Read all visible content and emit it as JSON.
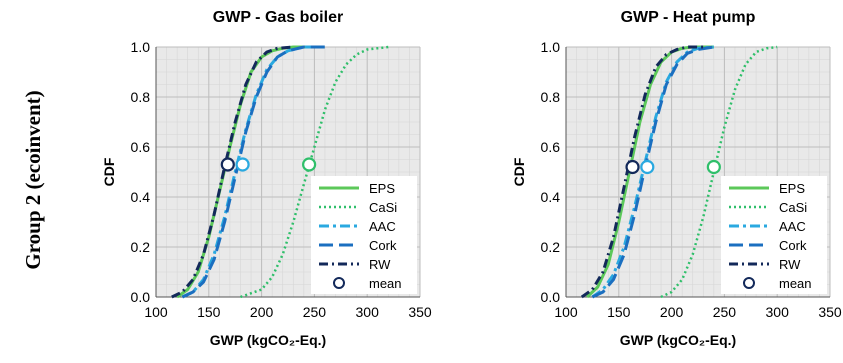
{
  "row_label": "Group 2 (ecoinvent)",
  "colors": {
    "eps": "#5cc85a",
    "casi": "#2fbf6a",
    "aac": "#2aa9e0",
    "cork": "#1b6fc0",
    "rw": "#13295a",
    "grid": "#c8c8c8",
    "plot_bg": "#e9e9e9"
  },
  "chart_data": [
    {
      "type": "line",
      "title": "GWP - Gas boiler",
      "xlabel": "GWP (kgCO₂-Eq.)",
      "ylabel": "CDF",
      "xlim": [
        100,
        350
      ],
      "ylim": [
        0,
        1
      ],
      "xticks": [
        100,
        150,
        200,
        250,
        300,
        350
      ],
      "yticks": [
        0.0,
        0.2,
        0.4,
        0.6,
        0.8,
        1.0
      ],
      "grid": true,
      "legend_position": "bottom-right",
      "series": [
        {
          "name": "EPS",
          "key": "eps",
          "dash": "solid",
          "x": [
            120,
            130,
            140,
            150,
            160,
            170,
            180,
            190,
            200,
            210,
            220,
            230,
            250
          ],
          "y": [
            0.0,
            0.03,
            0.1,
            0.24,
            0.42,
            0.6,
            0.77,
            0.9,
            0.96,
            0.985,
            0.995,
            1.0,
            1.0
          ]
        },
        {
          "name": "CaSi",
          "key": "casi",
          "dash": "dotted",
          "x": [
            180,
            200,
            210,
            220,
            230,
            240,
            250,
            260,
            270,
            280,
            290,
            300,
            320
          ],
          "y": [
            0.0,
            0.03,
            0.08,
            0.17,
            0.3,
            0.45,
            0.6,
            0.75,
            0.86,
            0.93,
            0.97,
            0.99,
            1.0
          ]
        },
        {
          "name": "AAC",
          "key": "aac",
          "dash": "dashdot",
          "x": [
            125,
            135,
            145,
            155,
            165,
            175,
            185,
            195,
            205,
            215,
            225,
            240,
            260
          ],
          "y": [
            0.0,
            0.02,
            0.07,
            0.17,
            0.32,
            0.5,
            0.67,
            0.81,
            0.91,
            0.96,
            0.985,
            1.0,
            1.0
          ]
        },
        {
          "name": "Cork",
          "key": "cork",
          "dash": "longdash",
          "x": [
            125,
            135,
            145,
            155,
            165,
            175,
            185,
            195,
            205,
            215,
            225,
            240,
            260
          ],
          "y": [
            0.0,
            0.02,
            0.06,
            0.15,
            0.3,
            0.48,
            0.66,
            0.8,
            0.9,
            0.96,
            0.985,
            1.0,
            1.0
          ]
        },
        {
          "name": "RW",
          "key": "rw",
          "dash": "dashdot2",
          "x": [
            115,
            125,
            135,
            145,
            155,
            165,
            175,
            185,
            195,
            205,
            215,
            230
          ],
          "y": [
            0.0,
            0.02,
            0.07,
            0.17,
            0.33,
            0.52,
            0.7,
            0.85,
            0.94,
            0.98,
            0.995,
            1.0
          ]
        }
      ],
      "means": [
        {
          "name": "RW",
          "key": "rw",
          "x": 168,
          "y": 0.53
        },
        {
          "name": "AAC",
          "key": "aac",
          "x": 182,
          "y": 0.53
        },
        {
          "name": "CaSi",
          "key": "casi",
          "x": 245,
          "y": 0.53
        }
      ],
      "legend": [
        "EPS",
        "CaSi",
        "AAC",
        "Cork",
        "RW",
        "mean"
      ]
    },
    {
      "type": "line",
      "title": "GWP - Heat pump",
      "xlabel": "GWP (kgCO₂-Eq.)",
      "ylabel": "CDF",
      "xlim": [
        100,
        350
      ],
      "ylim": [
        0,
        1
      ],
      "xticks": [
        100,
        150,
        200,
        250,
        300,
        350
      ],
      "yticks": [
        0.0,
        0.2,
        0.4,
        0.6,
        0.8,
        1.0
      ],
      "grid": true,
      "legend_position": "bottom-right",
      "series": [
        {
          "name": "EPS",
          "key": "eps",
          "dash": "solid",
          "x": [
            120,
            130,
            140,
            150,
            160,
            170,
            180,
            190,
            200,
            210,
            220,
            240
          ],
          "y": [
            0.0,
            0.04,
            0.13,
            0.3,
            0.5,
            0.7,
            0.85,
            0.94,
            0.98,
            0.995,
            1.0,
            1.0
          ]
        },
        {
          "name": "CaSi",
          "key": "casi",
          "dash": "dotted",
          "x": [
            190,
            200,
            210,
            220,
            230,
            240,
            250,
            260,
            270,
            280,
            290,
            300
          ],
          "y": [
            0.0,
            0.02,
            0.07,
            0.17,
            0.32,
            0.5,
            0.68,
            0.83,
            0.93,
            0.98,
            0.995,
            1.0
          ]
        },
        {
          "name": "AAC",
          "key": "aac",
          "dash": "dashdot",
          "x": [
            125,
            135,
            145,
            155,
            165,
            175,
            185,
            195,
            205,
            215,
            225,
            240
          ],
          "y": [
            0.0,
            0.03,
            0.09,
            0.2,
            0.36,
            0.54,
            0.72,
            0.86,
            0.94,
            0.98,
            0.995,
            1.0
          ]
        },
        {
          "name": "Cork",
          "key": "cork",
          "dash": "longdash",
          "x": [
            125,
            135,
            145,
            155,
            165,
            175,
            185,
            195,
            205,
            215,
            225,
            240
          ],
          "y": [
            0.0,
            0.02,
            0.07,
            0.17,
            0.33,
            0.52,
            0.7,
            0.85,
            0.93,
            0.975,
            0.99,
            1.0
          ]
        },
        {
          "name": "RW",
          "key": "rw",
          "dash": "dashdot2",
          "x": [
            115,
            125,
            135,
            145,
            155,
            165,
            175,
            185,
            195,
            205,
            215,
            230
          ],
          "y": [
            0.0,
            0.03,
            0.1,
            0.24,
            0.44,
            0.64,
            0.81,
            0.92,
            0.97,
            0.99,
            1.0,
            1.0
          ]
        }
      ],
      "means": [
        {
          "name": "RW",
          "key": "rw",
          "x": 163,
          "y": 0.52
        },
        {
          "name": "AAC",
          "key": "aac",
          "x": 177,
          "y": 0.52
        },
        {
          "name": "CaSi",
          "key": "casi",
          "x": 240,
          "y": 0.52
        }
      ],
      "legend": [
        "EPS",
        "CaSi",
        "AAC",
        "Cork",
        "RW",
        "mean"
      ]
    }
  ]
}
